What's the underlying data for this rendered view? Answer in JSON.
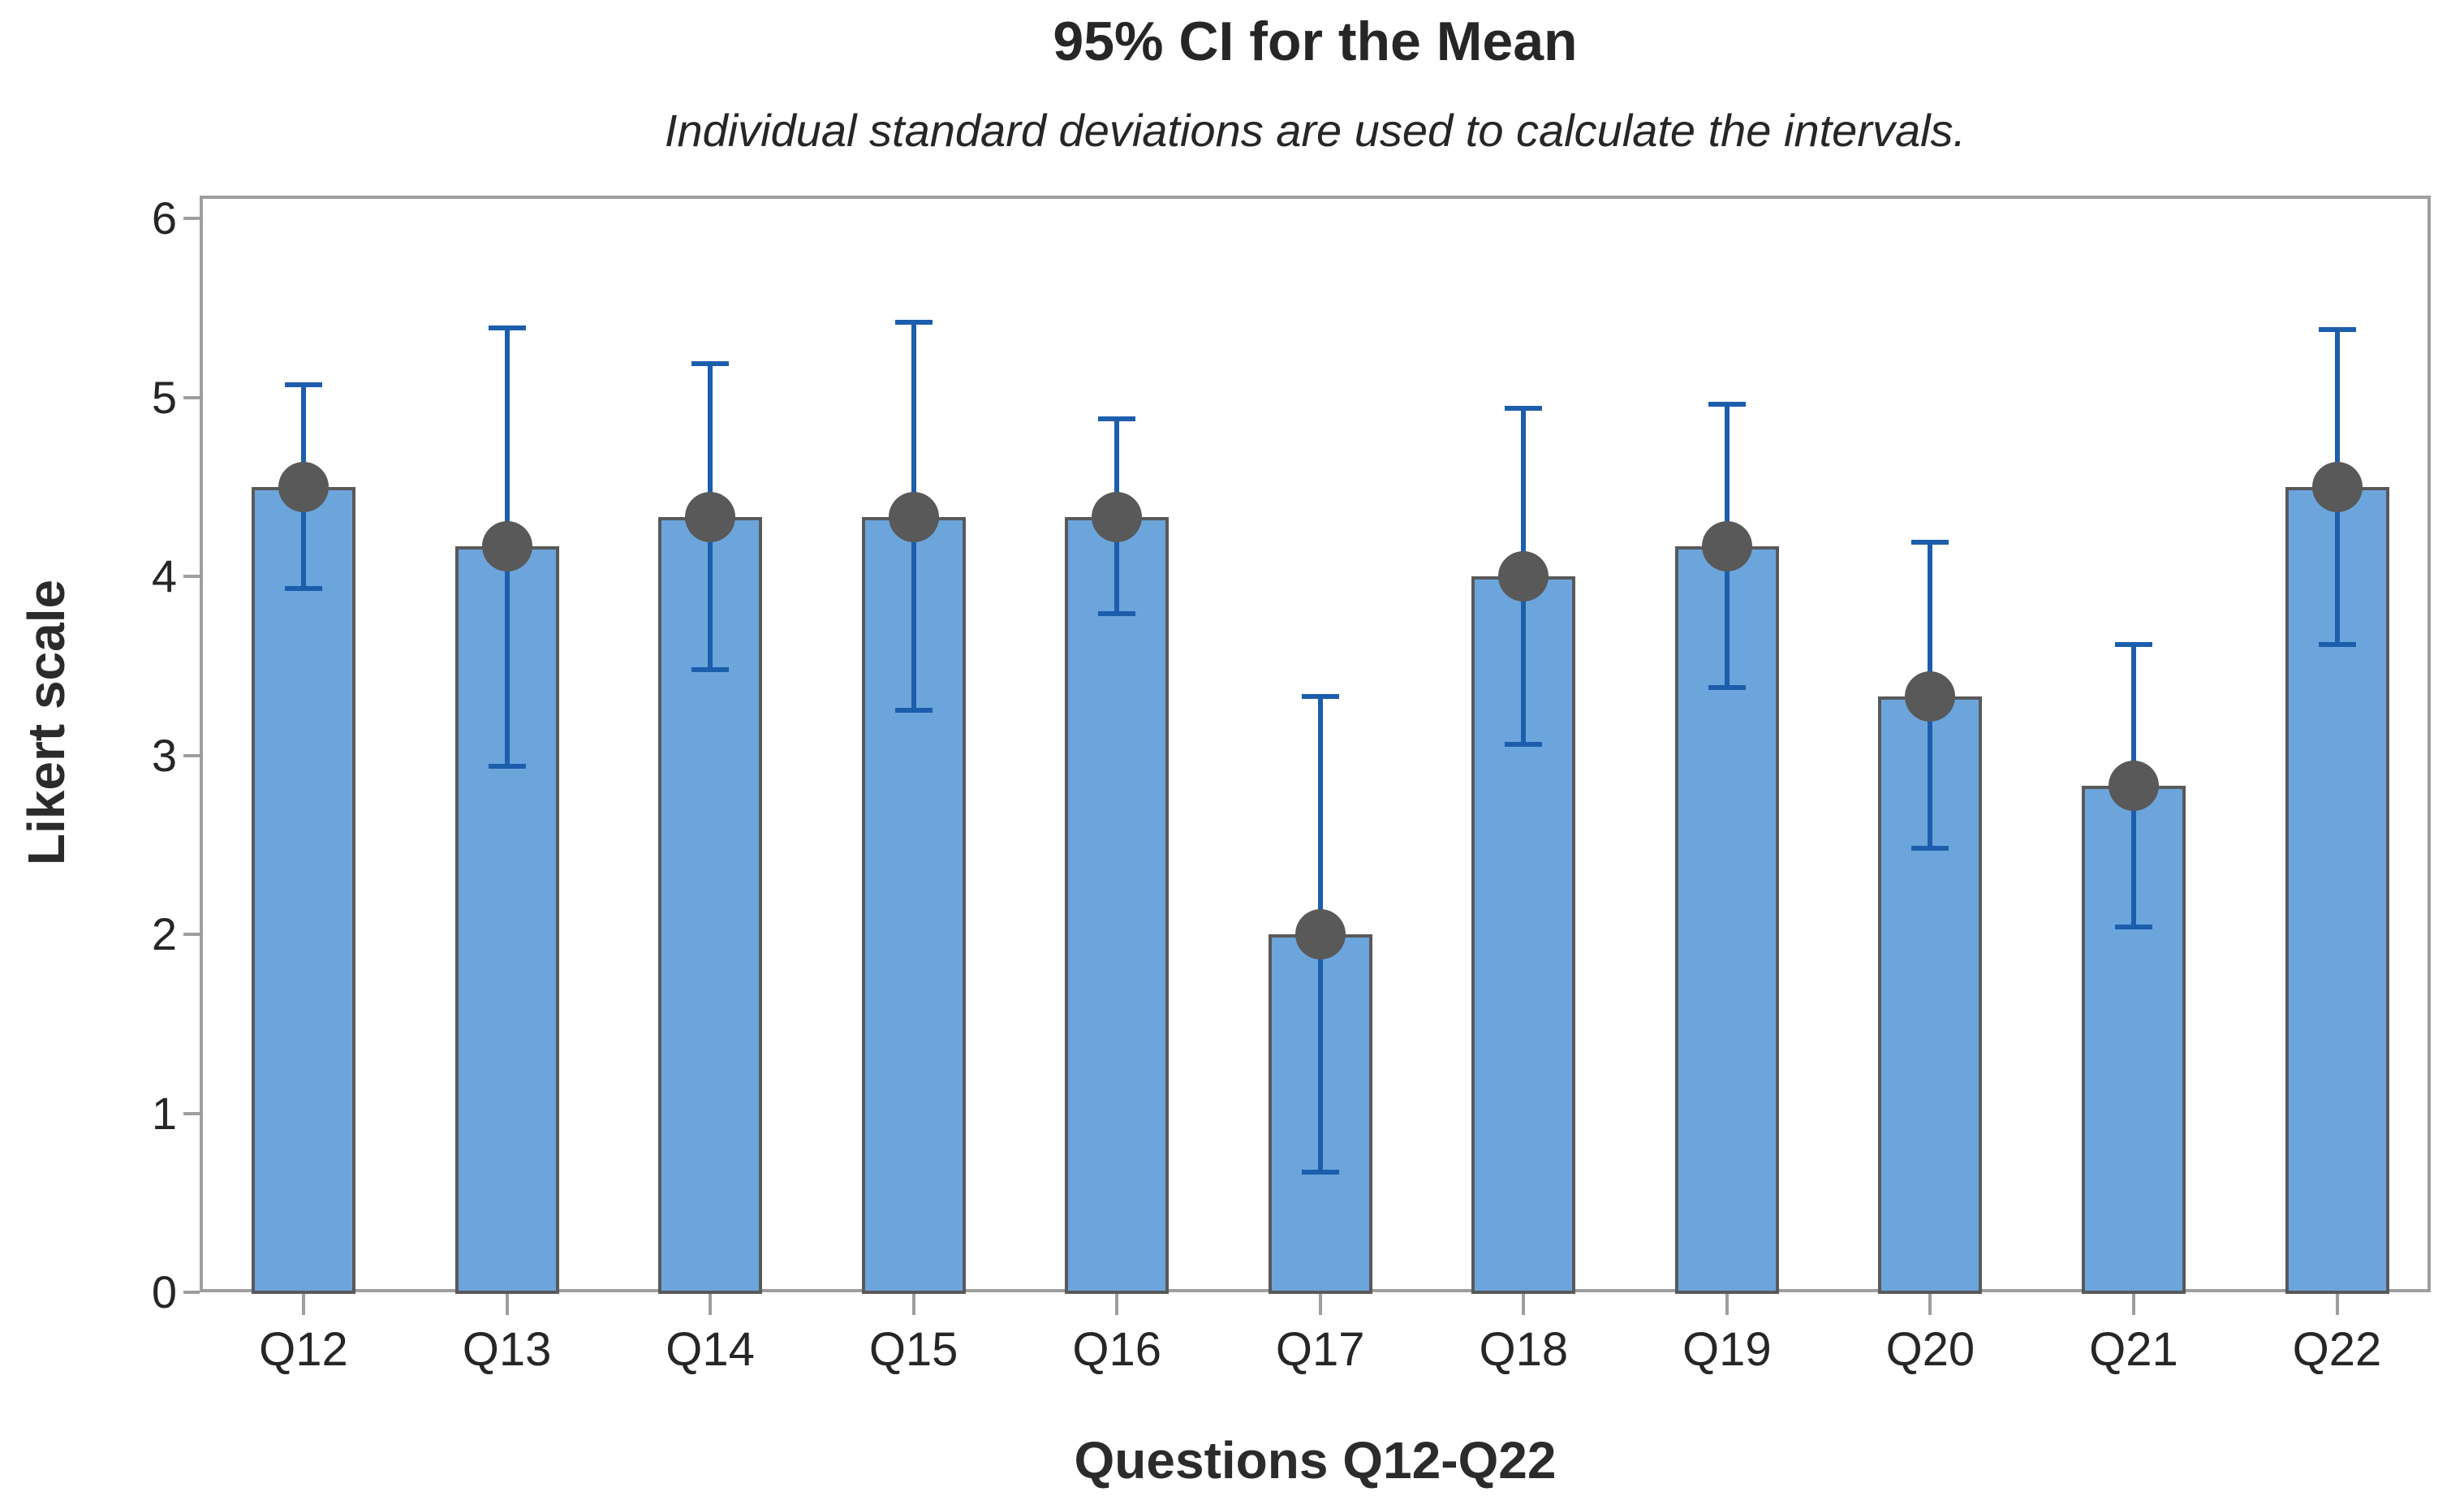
{
  "chart_data": {
    "type": "bar",
    "title": "95% CI for the Mean",
    "subtitle": "Individual standard deviations are used to calculate the intervals.",
    "xlabel": "Questions Q12-Q22",
    "ylabel": "Likert scale",
    "categories": [
      "Q12",
      "Q13",
      "Q14",
      "Q15",
      "Q16",
      "Q17",
      "Q18",
      "Q19",
      "Q20",
      "Q21",
      "Q22"
    ],
    "series": [
      {
        "name": "Mean",
        "values": [
          4.5,
          4.17,
          4.33,
          4.33,
          4.33,
          2.0,
          4.0,
          4.17,
          3.33,
          2.83,
          4.5
        ]
      },
      {
        "name": "95% CI lower",
        "values": [
          3.93,
          2.94,
          3.48,
          3.25,
          3.79,
          0.67,
          3.06,
          3.38,
          2.48,
          2.04,
          3.62
        ]
      },
      {
        "name": "95% CI upper",
        "values": [
          5.07,
          5.39,
          5.19,
          5.42,
          4.88,
          3.33,
          4.94,
          4.96,
          4.19,
          3.62,
          5.38
        ]
      }
    ],
    "ylim": [
      0,
      6
    ],
    "yticks": [
      0,
      1,
      2,
      3,
      4,
      5,
      6
    ],
    "grid": false,
    "legend_position": "none",
    "colors": {
      "bar_fill": "#6ca5dc",
      "bar_border": "#595959",
      "error_bar": "#1c5eac",
      "mean_marker": "#595959",
      "axis_frame": "#9e9e9e",
      "text": "#262626"
    }
  }
}
